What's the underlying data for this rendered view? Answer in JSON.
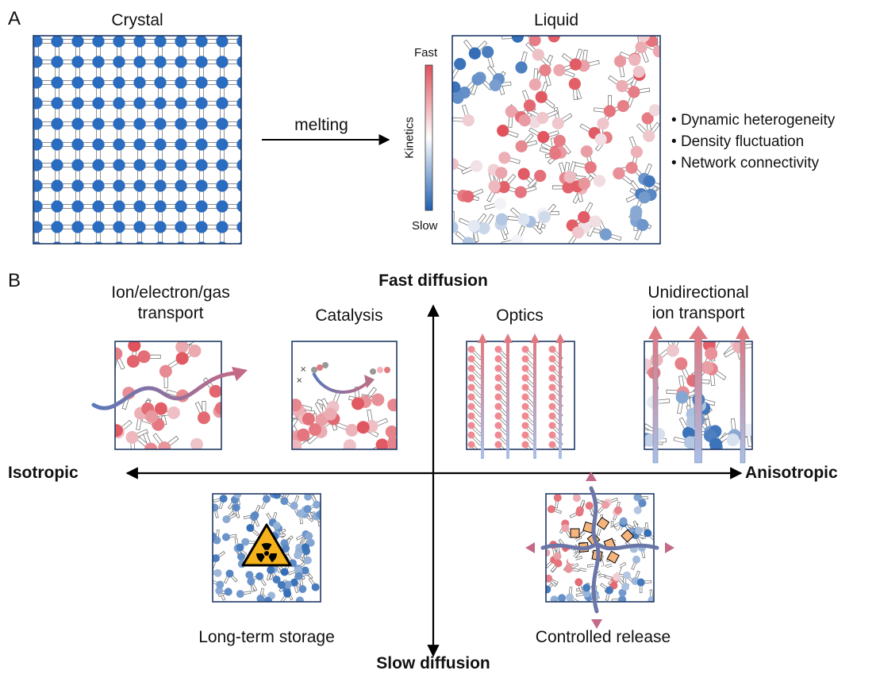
{
  "panel_a": {
    "letter": "A",
    "crystal_title": "Crystal",
    "liquid_title": "Liquid",
    "arrow_label": "melting",
    "colorbar": {
      "top": "Fast",
      "bottom": "Slow",
      "axis": "Kinetics",
      "color_fast": "#e0505a",
      "color_slow": "#1f5fb0"
    },
    "properties": [
      "Dynamic heterogeneity",
      "Density fluctuation",
      "Network connectivity"
    ]
  },
  "panel_b": {
    "letter": "B",
    "axes": {
      "top": "Fast diffusion",
      "bottom": "Slow diffusion",
      "left": "Isotropic",
      "right": "Anisotropic"
    },
    "applications": {
      "transport": [
        "Ion/electron/gas",
        "transport"
      ],
      "catalysis": "Catalysis",
      "optics": "Optics",
      "unidirectional": [
        "Unidirectional",
        "ion transport"
      ],
      "storage": "Long-term storage",
      "release": "Controlled release"
    }
  },
  "colors": {
    "crystal_atom": "#2a6cc0",
    "frame": "#1f3a66",
    "hazard": "#f6b21a",
    "cargo": "#f5b57d"
  },
  "icons": [
    "radiation-hazard-icon",
    "diffusion-arrow-icon"
  ]
}
